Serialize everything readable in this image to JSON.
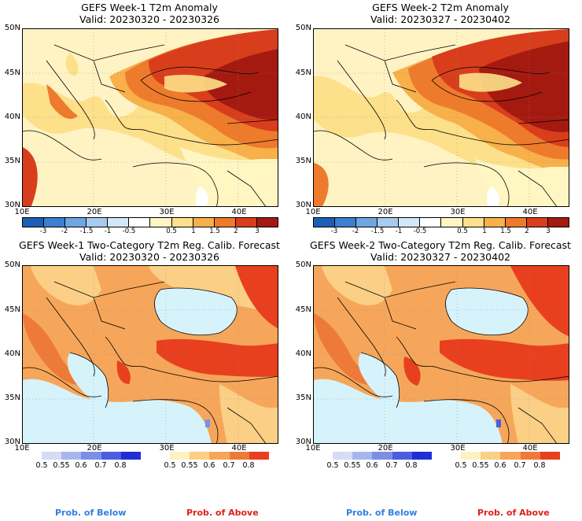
{
  "panels": [
    {
      "title": "GEFS Week-1 T2m Anomaly",
      "valid": "Valid: 20230320 - 20230326",
      "kind": "anomaly"
    },
    {
      "title": "GEFS Week-2 T2m Anomaly",
      "valid": "Valid: 20230327 - 20230402",
      "kind": "anomaly"
    },
    {
      "title": "GEFS Week-1 Two-Category T2m Reg. Calib. Forecast",
      "valid": "Valid: 20230320 - 20230326",
      "kind": "prob"
    },
    {
      "title": "GEFS Week-2 Two-Category T2m Reg. Calib. Forecast",
      "valid": "Valid: 20230327 - 20230402",
      "kind": "prob"
    }
  ],
  "axes": {
    "lat_labels": [
      "50N",
      "45N",
      "40N",
      "35N",
      "30N"
    ],
    "lon_labels": [
      "10E",
      "20E",
      "30E",
      "40E"
    ]
  },
  "anomaly_colorbar": {
    "ticks": [
      "-3",
      "-2",
      "-1.5",
      "-1",
      "-0.5",
      "0.5",
      "1",
      "1.5",
      "2",
      "3"
    ],
    "colors": [
      "#1a5fb4",
      "#3b7fd0",
      "#6ea6e2",
      "#a6cbee",
      "#d4e7f7",
      "#ffffff",
      "#fff6c2",
      "#fde08a",
      "#f7b04a",
      "#ee7a2c",
      "#d93e1c",
      "#a51a10"
    ]
  },
  "prob_below": {
    "ticks": [
      "0.5",
      "0.55",
      "0.6",
      "0.7",
      "0.8"
    ],
    "colors": [
      "#d6dcf6",
      "#a8b6ee",
      "#7d8ee6",
      "#4b5ee0",
      "#1e2fd6"
    ],
    "label": "Prob. of Below"
  },
  "prob_above": {
    "ticks": [
      "0.5",
      "0.55",
      "0.6",
      "0.7",
      "0.8"
    ],
    "colors": [
      "#fff1c0",
      "#fbcf85",
      "#f6a65a",
      "#ee7a3a",
      "#e8401f"
    ],
    "label": "Prob. of Above"
  },
  "colors": {
    "sea": "#d6f3fb",
    "land_low": "#fff3c4",
    "above_mid": "#f6a65a",
    "above_high": "#e8401f",
    "anom_dark": "#c0280f"
  }
}
